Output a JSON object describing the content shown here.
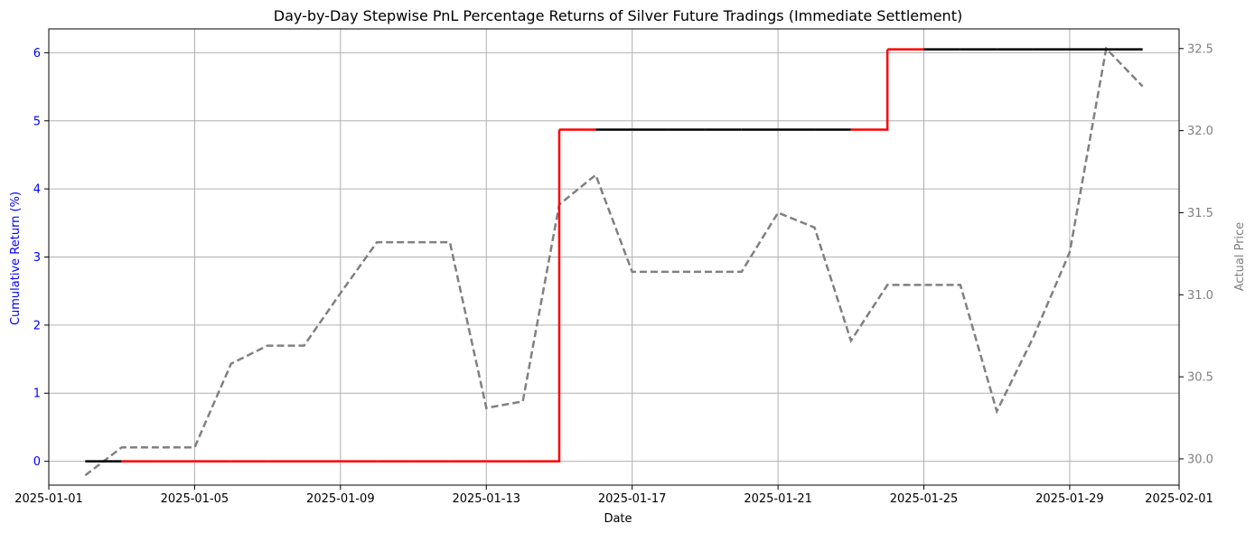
{
  "chart_data": {
    "type": "line",
    "title": "Day-by-Day Stepwise PnL Percentage Returns of Silver Future Tradings (Immediate Settlement)",
    "xlabel": "Date",
    "ylabel_left": "Cumulative Return (%)",
    "ylabel_right": "Actual Price",
    "grid": true,
    "x_dates": [
      "2025-01-02",
      "2025-01-03",
      "2025-01-04",
      "2025-01-05",
      "2025-01-06",
      "2025-01-07",
      "2025-01-08",
      "2025-01-09",
      "2025-01-10",
      "2025-01-11",
      "2025-01-12",
      "2025-01-13",
      "2025-01-14",
      "2025-01-15",
      "2025-01-16",
      "2025-01-17",
      "2025-01-18",
      "2025-01-19",
      "2025-01-20",
      "2025-01-21",
      "2025-01-22",
      "2025-01-23",
      "2025-01-24",
      "2025-01-25",
      "2025-01-26",
      "2025-01-27",
      "2025-01-28",
      "2025-01-29",
      "2025-01-30",
      "2025-01-31"
    ],
    "xlim": [
      "2025-01-01",
      "2025-02-01"
    ],
    "x_ticks": [
      "2025-01-01",
      "2025-01-05",
      "2025-01-09",
      "2025-01-13",
      "2025-01-17",
      "2025-01-21",
      "2025-01-25",
      "2025-01-29",
      "2025-02-01"
    ],
    "ylim_left": [
      -0.35,
      6.35
    ],
    "y_ticks_left": [
      0,
      1,
      2,
      3,
      4,
      5,
      6
    ],
    "ylim_right": [
      29.84,
      32.62
    ],
    "y_ticks_right": [
      30.0,
      30.5,
      31.0,
      31.5,
      32.0,
      32.5
    ],
    "y_tick_labels_right": [
      "30.0",
      "30.5",
      "31.0",
      "31.5",
      "32.0",
      "32.5"
    ],
    "cumulative_return": [
      0,
      0,
      0,
      0,
      0,
      0,
      0,
      0,
      0,
      0,
      0,
      0,
      0,
      4.87,
      4.87,
      4.87,
      4.87,
      4.87,
      4.87,
      4.87,
      4.87,
      4.87,
      6.05,
      6.05,
      6.05,
      6.05,
      6.05,
      6.05,
      6.05,
      6.05
    ],
    "position_active": [
      false,
      true,
      true,
      true,
      true,
      true,
      true,
      true,
      true,
      true,
      true,
      true,
      true,
      true,
      false,
      false,
      false,
      false,
      false,
      false,
      false,
      true,
      true,
      false,
      false,
      false,
      false,
      false,
      false,
      false
    ],
    "actual_price": [
      29.9,
      30.07,
      30.07,
      30.07,
      30.58,
      30.69,
      30.69,
      31.01,
      31.32,
      31.32,
      31.32,
      30.31,
      30.35,
      31.55,
      31.73,
      31.14,
      31.14,
      31.14,
      31.14,
      31.5,
      31.41,
      30.72,
      31.06,
      31.06,
      31.06,
      30.29,
      30.74,
      31.26,
      32.5,
      32.27
    ],
    "colors": {
      "return_inactive": "#000000",
      "return_active": "#ff0000",
      "price": "#808080",
      "left_axis": "#0000ff",
      "right_axis": "#808080",
      "grid": "#b0b0b0"
    }
  }
}
